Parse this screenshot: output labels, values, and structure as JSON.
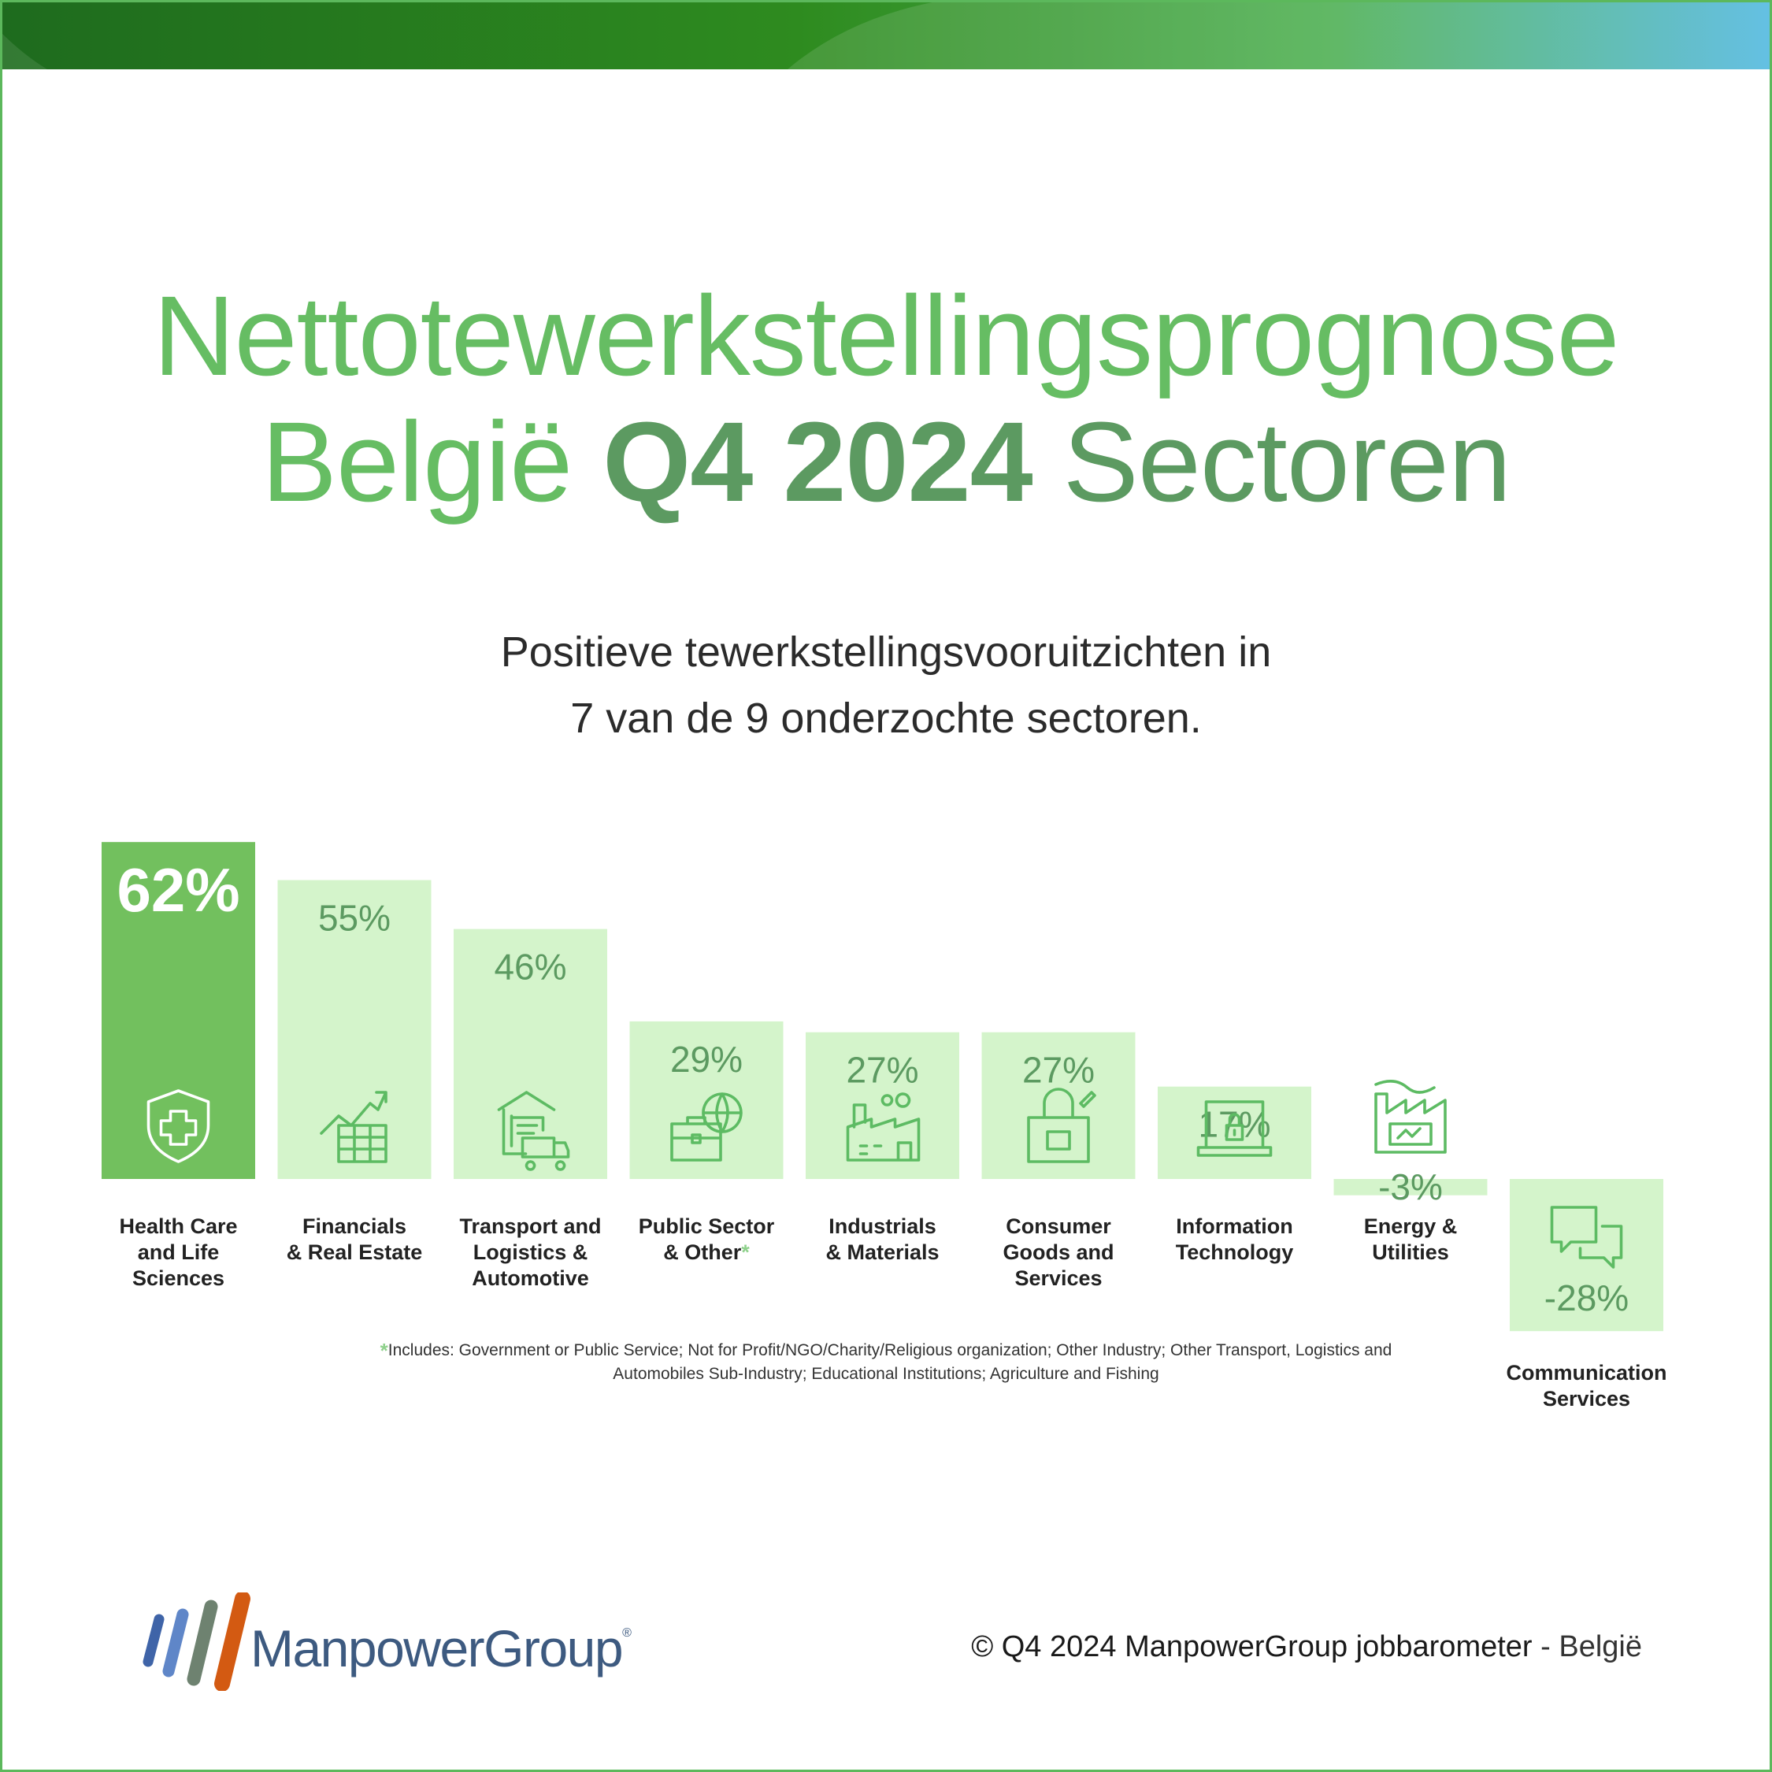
{
  "title": {
    "line1": "Nettotewerkstellingsprognose",
    "line2_a": "België",
    "line2_b": "Q4 2024",
    "line2_c": "Sectoren"
  },
  "subtitle": {
    "line1": "Positieve tewerkstellingsvooruitzichten in",
    "line2": "7 van de 9 onderzochte sectoren."
  },
  "colors": {
    "highlight_bar": "#72c05e",
    "bar": "#d4f4cb",
    "icon": "#5dbb63",
    "value_text": "#5c9a61",
    "title_green": "#66bd63",
    "title_dark": "#5c9a61"
  },
  "chart_data": {
    "type": "bar",
    "categories": [
      "Health Care and Life Sciences",
      "Financials & Real Estate",
      "Transport and Logistics & Automotive",
      "Public Sector & Other*",
      "Industrials & Materials",
      "Consumer Goods and Services",
      "Information Technology",
      "Energy & Utilities",
      "Communication Services"
    ],
    "label_lines": [
      [
        "Health Care",
        "and Life",
        "Sciences"
      ],
      [
        "Financials",
        "& Real Estate"
      ],
      [
        "Transport and",
        "Logistics &",
        "Automotive"
      ],
      [
        "Public Sector",
        "& Other"
      ],
      [
        "Industrials",
        "& Materials"
      ],
      [
        "Consumer",
        "Goods and",
        "Services"
      ],
      [
        "Information",
        "Technology"
      ],
      [
        "Energy &",
        "Utilities"
      ],
      [
        "Communication",
        "Services"
      ]
    ],
    "values": [
      62,
      55,
      46,
      29,
      27,
      27,
      17,
      -3,
      -28
    ],
    "value_labels": [
      "62%",
      "55%",
      "46%",
      "29%",
      "27%",
      "27%",
      "17%",
      "-3%",
      "-28%"
    ],
    "icons": [
      "shield-cross-icon",
      "growth-chart-icon",
      "warehouse-truck-icon",
      "briefcase-globe-icon",
      "factory-icon",
      "shopping-bag-icon",
      "laptop-lock-icon",
      "energy-factory-icon",
      "chat-bubbles-icon"
    ],
    "highlight_index": 0,
    "ylim": [
      -28,
      62
    ],
    "grid": false,
    "legend": "none"
  },
  "footnote": {
    "star": "*",
    "text": "Includes: Government or Public Service; Not for Profit/NGO/Charity/Religious organization; Other Industry; Other Transport, Logistics and Automobiles Sub-Industry; Educational Institutions; Agriculture and Fishing"
  },
  "footer": {
    "logo_text": "ManpowerGroup",
    "logo_mark": "®",
    "copyright_main": "© Q4 2024 ManpowerGroup jobbarometer",
    "copyright_sep": " - ",
    "copyright_country": "België"
  }
}
